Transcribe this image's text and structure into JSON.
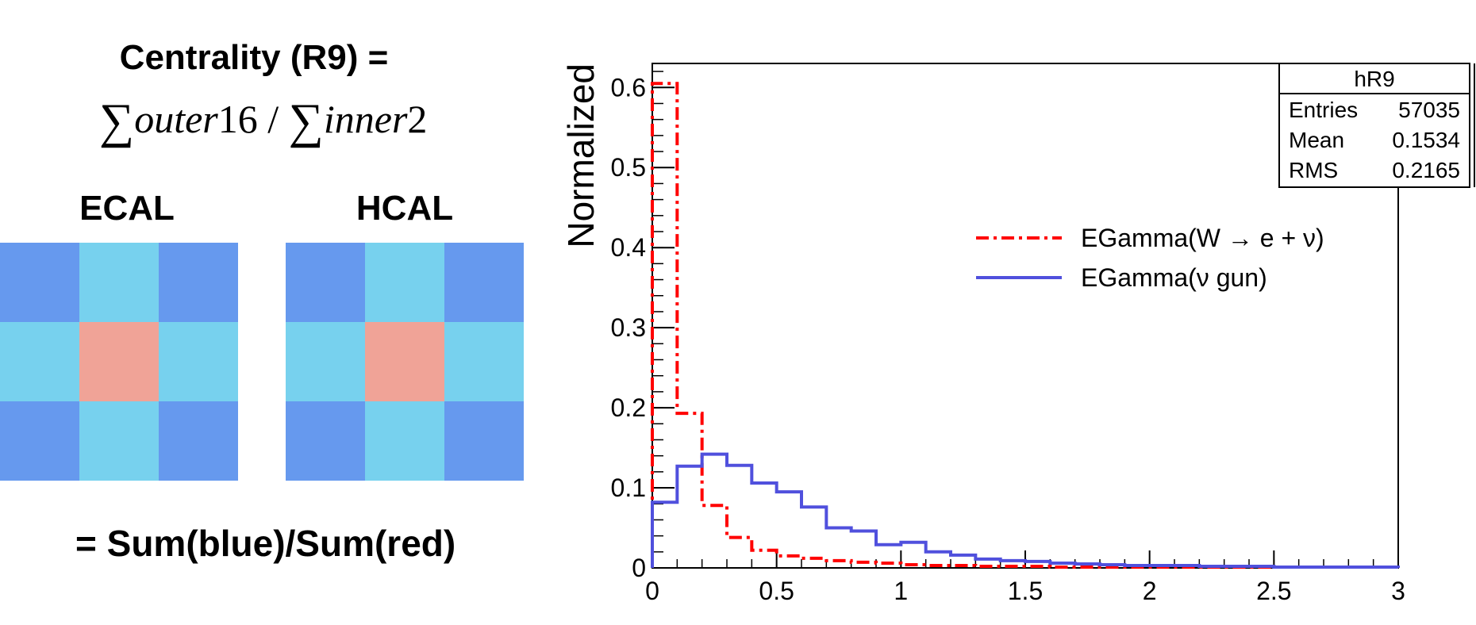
{
  "left_panel": {
    "title": "Centrality (R9) =",
    "formula": {
      "sigma": "∑",
      "outer_word": "outer",
      "outer_num": "16",
      "slash": "/",
      "inner_word": "inner",
      "inner_num": "2"
    },
    "ecal_label": "ECAL",
    "hcal_label": "HCAL",
    "bottom_equation": "= Sum(blue)/Sum(red)",
    "cell_roles": [
      "corner",
      "edge",
      "corner",
      "edge",
      "center",
      "edge",
      "corner",
      "edge",
      "corner"
    ],
    "colors": {
      "corner": "#6699ee",
      "edge": "#77d1ee",
      "center": "#f0a397"
    }
  },
  "chart_data": {
    "type": "histogram",
    "xlabel": "",
    "ylabel": "Normalized",
    "xlim": [
      0,
      3
    ],
    "ylim": [
      0,
      0.63
    ],
    "x_ticks": [
      {
        "value": 0,
        "label": "0"
      },
      {
        "value": 0.5,
        "label": "0.5"
      },
      {
        "value": 1,
        "label": "1"
      },
      {
        "value": 1.5,
        "label": "1.5"
      },
      {
        "value": 2,
        "label": "2"
      },
      {
        "value": 2.5,
        "label": "2.5"
      },
      {
        "value": 3,
        "label": "3"
      }
    ],
    "y_ticks": [
      {
        "value": 0,
        "label": "0"
      },
      {
        "value": 0.1,
        "label": "0.1"
      },
      {
        "value": 0.2,
        "label": "0.2"
      },
      {
        "value": 0.3,
        "label": "0.3"
      },
      {
        "value": 0.4,
        "label": "0.4"
      },
      {
        "value": 0.5,
        "label": "0.5"
      },
      {
        "value": 0.6,
        "label": "0.6"
      }
    ],
    "bin_width": 0.1,
    "series": [
      {
        "name": "EGamma(W → e + ν)",
        "legend_label": "EGamma(W → e + ν)",
        "color": "#ff0000",
        "dash": "dashdot",
        "values": [
          0.605,
          0.193,
          0.078,
          0.038,
          0.022,
          0.015,
          0.012,
          0.009,
          0.007,
          0.006,
          0.004,
          0.003,
          0.003,
          0.002,
          0.002,
          0.002,
          0.001,
          0.001,
          0.001,
          0.001,
          0.001,
          0.001,
          0.001,
          0.001,
          0.001,
          0.001,
          0.001,
          0.001,
          0.001,
          0.001
        ]
      },
      {
        "name": "EGamma(ν gun)",
        "legend_label": "EGamma(ν gun)",
        "color": "#5050dd",
        "dash": "solid",
        "values": [
          0.082,
          0.127,
          0.142,
          0.128,
          0.106,
          0.095,
          0.076,
          0.05,
          0.046,
          0.029,
          0.032,
          0.02,
          0.016,
          0.011,
          0.009,
          0.008,
          0.006,
          0.005,
          0.004,
          0.003,
          0.003,
          0.003,
          0.002,
          0.002,
          0.002,
          0.001,
          0.001,
          0.001,
          0.001,
          0.001
        ]
      }
    ],
    "stats_box": {
      "title": "hR9",
      "rows": [
        {
          "label": "Entries",
          "value": "57035"
        },
        {
          "label": "Mean",
          "value": "0.1534"
        },
        {
          "label": "RMS",
          "value": "0.2165"
        }
      ]
    },
    "legend_position": "right"
  }
}
